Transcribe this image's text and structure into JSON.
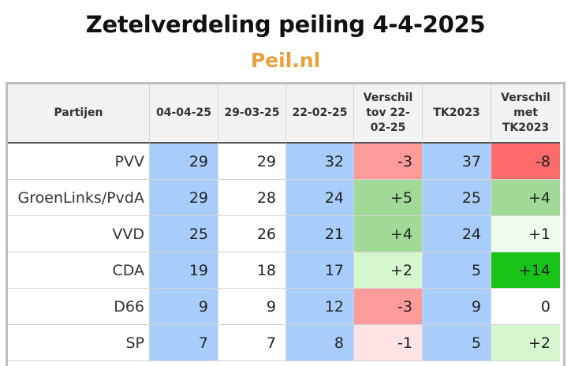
{
  "title": "Zetelverdeling peiling 4-4-2025",
  "subtitle": "Peil.nl",
  "table": {
    "headers": [
      "Partijen",
      "04-04-25",
      "29-03-25",
      "22-02-25",
      "Verschil tov 22-02-25",
      "TK2023",
      "Verschil met TK2023"
    ],
    "rows": [
      {
        "party": "PVV",
        "c1": "29",
        "c2": "29",
        "c3": "32",
        "c4": "-3",
        "c5": "37",
        "c6": "-8"
      },
      {
        "party": "GroenLinks/PvdA",
        "c1": "29",
        "c2": "28",
        "c3": "24",
        "c4": "+5",
        "c5": "25",
        "c6": "+4"
      },
      {
        "party": "VVD",
        "c1": "25",
        "c2": "26",
        "c3": "21",
        "c4": "+4",
        "c5": "24",
        "c6": "+1"
      },
      {
        "party": "CDA",
        "c1": "19",
        "c2": "18",
        "c3": "17",
        "c4": "+2",
        "c5": "5",
        "c6": "+14"
      },
      {
        "party": "D66",
        "c1": "9",
        "c2": "9",
        "c3": "12",
        "c4": "-3",
        "c5": "9",
        "c6": "0"
      },
      {
        "party": "SP",
        "c1": "7",
        "c2": "7",
        "c3": "8",
        "c4": "-1",
        "c5": "5",
        "c6": "+2"
      }
    ]
  },
  "colors": {
    "title_accent": "#e8a03a",
    "blue": "#a8cdfa",
    "header_bg": "#f2f2f2",
    "diff_red_strong": "#ff6b6b",
    "diff_red": "#fd9a9a",
    "diff_red_light": "#fde3e3",
    "diff_green_strong": "#19c419",
    "diff_green": "#a0da96",
    "diff_green_light": "#d5f7cd",
    "diff_green_faint": "#eefcec",
    "neutral": "#ffffff"
  }
}
